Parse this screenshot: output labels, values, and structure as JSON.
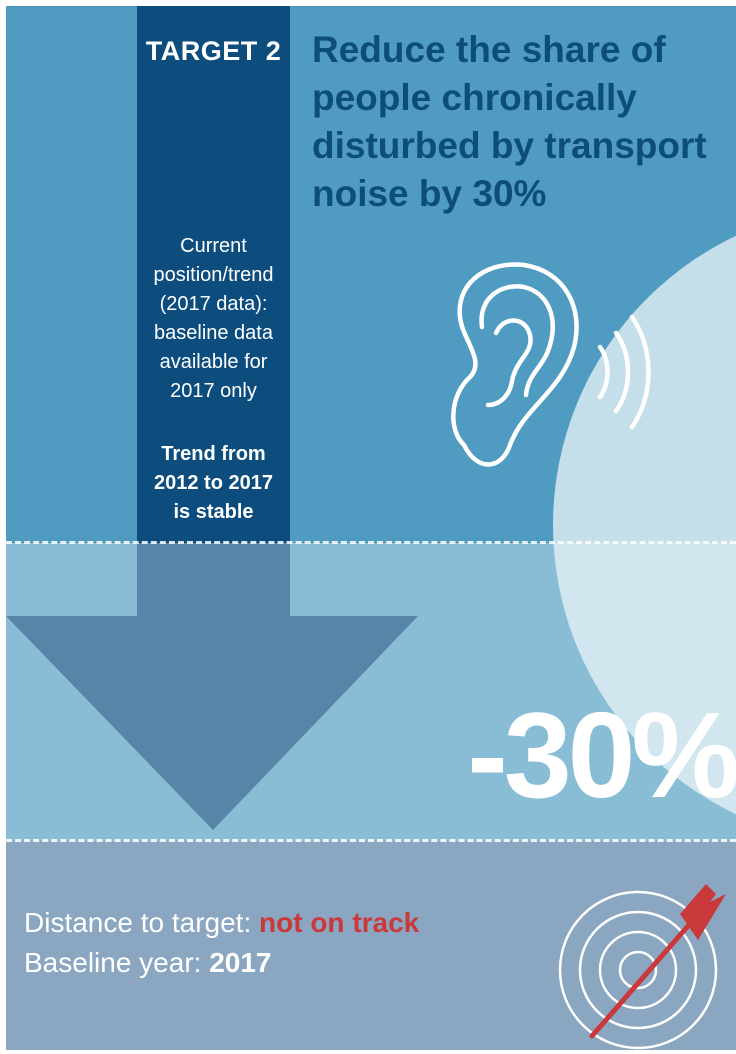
{
  "target_label": "TARGET 2",
  "title": {
    "line1": "Reduce the share of",
    "line2": "people chronically",
    "line3": "disturbed by transport",
    "line4": "noise by 30%"
  },
  "status": {
    "lines": [
      "Current",
      "position/trend",
      "(2017 data):",
      "baseline data",
      "available for",
      "2017 only"
    ]
  },
  "trend": {
    "lines": [
      "Trend from",
      "2012 to 2017",
      "is stable"
    ]
  },
  "target_value": "-30%",
  "footer": {
    "distance_label": "Distance to target: ",
    "distance_value": "not on track",
    "baseline_label": "Baseline year: ",
    "baseline_value": "2017"
  },
  "colors": {
    "column": "#0d4d7d",
    "top_band": "#4f9bc1",
    "middle_band": "#88bdd5",
    "bottom_band": "#8aa6c1",
    "arrow": "#5685a8",
    "alert": "#c9393b"
  },
  "icons": {
    "ear": "ear-icon",
    "sound": "sound-waves-icon",
    "target": "target-dart-icon"
  }
}
